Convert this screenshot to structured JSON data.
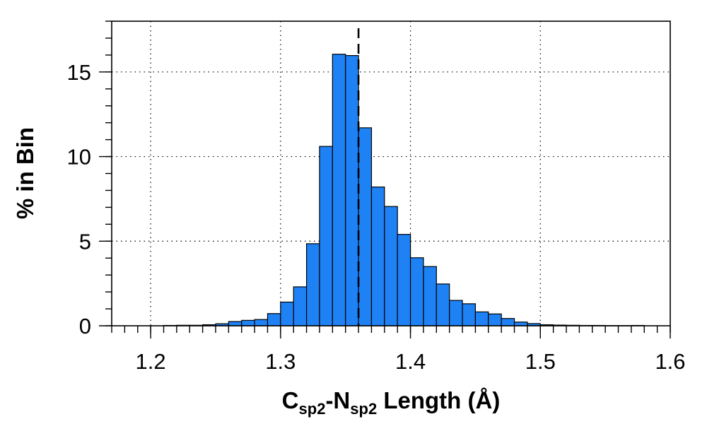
{
  "chart_data": {
    "type": "bar",
    "title": "",
    "xlabel": {
      "parts": [
        {
          "text": "C",
          "sub": false
        },
        {
          "text": "sp2",
          "sub": true
        },
        {
          "text": "-N",
          "sub": false
        },
        {
          "text": "sp2",
          "sub": true
        },
        {
          "text": " Length (Å)",
          "sub": false
        }
      ]
    },
    "ylabel": "% in Bin",
    "xlim": [
      1.17,
      1.6
    ],
    "ylim": [
      0,
      18
    ],
    "grid": true,
    "bar_color": "#1e82f5",
    "bin_width": 0.01,
    "x_ticks": [
      {
        "value": 1.2,
        "label": "1.2"
      },
      {
        "value": 1.3,
        "label": "1.3"
      },
      {
        "value": 1.4,
        "label": "1.4"
      },
      {
        "value": 1.5,
        "label": "1.5"
      },
      {
        "value": 1.6,
        "label": "1.6"
      }
    ],
    "y_ticks": [
      {
        "value": 0,
        "label": "0"
      },
      {
        "value": 5,
        "label": "5"
      },
      {
        "value": 10,
        "label": "10"
      },
      {
        "value": 15,
        "label": "15"
      }
    ],
    "x_minor_step": 0.01,
    "y_minor_step": 1,
    "bins": [
      {
        "start": 1.21,
        "value": 0.02
      },
      {
        "start": 1.22,
        "value": 0.03
      },
      {
        "start": 1.23,
        "value": 0.03
      },
      {
        "start": 1.24,
        "value": 0.06
      },
      {
        "start": 1.25,
        "value": 0.12
      },
      {
        "start": 1.26,
        "value": 0.25
      },
      {
        "start": 1.27,
        "value": 0.32
      },
      {
        "start": 1.28,
        "value": 0.37
      },
      {
        "start": 1.29,
        "value": 0.72
      },
      {
        "start": 1.3,
        "value": 1.4
      },
      {
        "start": 1.31,
        "value": 2.3
      },
      {
        "start": 1.32,
        "value": 4.85
      },
      {
        "start": 1.33,
        "value": 10.6
      },
      {
        "start": 1.34,
        "value": 16.05
      },
      {
        "start": 1.35,
        "value": 15.97
      },
      {
        "start": 1.36,
        "value": 11.7
      },
      {
        "start": 1.37,
        "value": 8.2
      },
      {
        "start": 1.38,
        "value": 7.05
      },
      {
        "start": 1.39,
        "value": 5.4
      },
      {
        "start": 1.4,
        "value": 4.02
      },
      {
        "start": 1.41,
        "value": 3.5
      },
      {
        "start": 1.42,
        "value": 2.47
      },
      {
        "start": 1.43,
        "value": 1.5
      },
      {
        "start": 1.44,
        "value": 1.3
      },
      {
        "start": 1.45,
        "value": 0.82
      },
      {
        "start": 1.46,
        "value": 0.7
      },
      {
        "start": 1.47,
        "value": 0.43
      },
      {
        "start": 1.48,
        "value": 0.22
      },
      {
        "start": 1.49,
        "value": 0.13
      },
      {
        "start": 1.5,
        "value": 0.06
      },
      {
        "start": 1.51,
        "value": 0.04
      },
      {
        "start": 1.52,
        "value": 0.03
      },
      {
        "start": 1.53,
        "value": 0.02
      },
      {
        "start": 1.54,
        "value": 0.02
      },
      {
        "start": 1.55,
        "value": 0.01
      },
      {
        "start": 1.56,
        "value": 0.01
      },
      {
        "start": 1.57,
        "value": 0.02
      }
    ],
    "reference_line": {
      "x": 1.36,
      "style": "dashed"
    }
  }
}
